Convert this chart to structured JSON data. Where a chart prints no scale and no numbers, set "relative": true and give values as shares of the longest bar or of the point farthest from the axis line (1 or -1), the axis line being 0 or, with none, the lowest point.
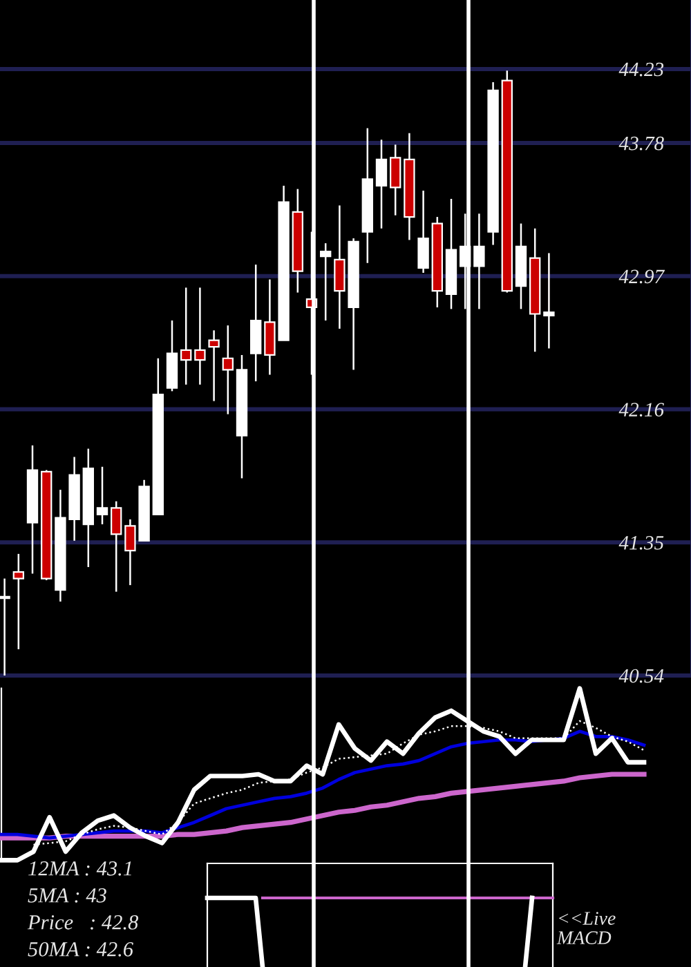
{
  "chart_data": [
    {
      "type": "candlestick",
      "categories": [
        null,
        null,
        null,
        null,
        null,
        null,
        null,
        null,
        null,
        null,
        null,
        null,
        null,
        null,
        null,
        null,
        null,
        null,
        null,
        null,
        null,
        null,
        null,
        null,
        null,
        null,
        null,
        null,
        null,
        null,
        null,
        null,
        null,
        null,
        null,
        null,
        null,
        null,
        null,
        null
      ],
      "ohlc": [
        [
          41.02,
          41.13,
          40.54,
          41.01
        ],
        [
          41.17,
          41.28,
          40.7,
          41.13
        ],
        [
          41.47,
          41.94,
          41.16,
          41.79
        ],
        [
          41.78,
          41.79,
          41.12,
          41.13
        ],
        [
          41.06,
          41.67,
          40.99,
          41.5
        ],
        [
          41.49,
          41.87,
          41.36,
          41.76
        ],
        [
          41.46,
          41.92,
          41.2,
          41.8
        ],
        [
          41.52,
          41.81,
          41.46,
          41.56
        ],
        [
          41.56,
          41.6,
          41.05,
          41.4
        ],
        [
          41.45,
          41.49,
          41.09,
          41.3
        ],
        [
          41.36,
          41.73,
          41.36,
          41.69
        ],
        [
          41.52,
          42.47,
          41.52,
          42.25
        ],
        [
          42.29,
          42.7,
          42.27,
          42.5
        ],
        [
          42.52,
          42.9,
          42.31,
          42.46
        ],
        [
          42.52,
          42.9,
          42.31,
          42.46
        ],
        [
          42.58,
          42.64,
          42.21,
          42.54
        ],
        [
          42.47,
          42.67,
          42.13,
          42.4
        ],
        [
          42.0,
          42.49,
          41.74,
          42.4
        ],
        [
          42.5,
          43.04,
          42.33,
          42.7
        ],
        [
          42.69,
          42.95,
          42.37,
          42.49
        ],
        [
          42.58,
          43.52,
          42.58,
          43.42
        ],
        [
          43.36,
          43.5,
          42.87,
          43.0
        ],
        [
          42.83,
          43.24,
          42.37,
          42.78
        ],
        [
          43.09,
          43.17,
          42.7,
          43.12
        ],
        [
          43.07,
          43.4,
          42.65,
          42.88
        ],
        [
          42.78,
          43.2,
          42.4,
          43.18
        ],
        [
          43.24,
          43.87,
          43.05,
          43.56
        ],
        [
          43.52,
          43.8,
          43.26,
          43.68
        ],
        [
          43.69,
          43.77,
          43.34,
          43.51
        ],
        [
          43.68,
          43.84,
          43.19,
          43.33
        ],
        [
          43.02,
          43.49,
          42.99,
          43.2
        ],
        [
          43.29,
          43.33,
          42.78,
          42.88
        ],
        [
          42.86,
          43.44,
          42.77,
          43.13
        ],
        [
          43.03,
          43.35,
          42.77,
          43.15
        ],
        [
          43.03,
          43.35,
          42.77,
          43.15
        ],
        [
          43.24,
          44.15,
          43.16,
          44.1
        ],
        [
          44.16,
          44.22,
          42.87,
          42.88
        ],
        [
          42.91,
          43.29,
          42.77,
          43.15
        ],
        [
          43.08,
          43.26,
          42.51,
          42.74
        ],
        [
          42.73,
          43.11,
          42.53,
          42.75
        ]
      ],
      "colors": [
        "#cc0000",
        "#cc0000",
        "#ffffff",
        "#cc0000",
        "#ffffff",
        "#ffffff",
        "#ffffff",
        "#ffffff",
        "#cc0000",
        "#cc0000",
        "#ffffff",
        "#ffffff",
        "#ffffff",
        "#cc0000",
        "#cc0000",
        "#cc0000",
        "#cc0000",
        "#ffffff",
        "#ffffff",
        "#cc0000",
        "#ffffff",
        "#cc0000",
        "#cc0000",
        "#ffffff",
        "#cc0000",
        "#ffffff",
        "#ffffff",
        "#ffffff",
        "#cc0000",
        "#cc0000",
        "#ffffff",
        "#cc0000",
        "#ffffff",
        "#ffffff",
        "#ffffff",
        "#ffffff",
        "#cc0000",
        "#ffffff",
        "#cc0000",
        "#ffffff"
      ],
      "ylim": [
        40.54,
        44.65
      ],
      "yticks": [
        40.54,
        41.35,
        42.16,
        42.97,
        43.78,
        44.23
      ],
      "grid": "y",
      "tick_labels": "y"
    },
    {
      "type": "line",
      "relative": true,
      "categories": [
        null,
        null,
        null,
        null,
        null,
        null,
        null,
        null,
        null,
        null,
        null,
        null,
        null,
        null,
        null,
        null,
        null,
        null,
        null,
        null,
        null,
        null,
        null,
        null,
        null,
        null,
        null,
        null,
        null,
        null,
        null,
        null,
        null,
        null,
        null,
        null,
        null,
        null,
        null,
        null,
        null
      ],
      "series": [
        {
          "color": "#cc66cc",
          "values": [
            0.13,
            0.13,
            0.13,
            0.13,
            0.14,
            0.14,
            0.14,
            0.14,
            0.14,
            0.14,
            0.14,
            0.15,
            0.15,
            0.16,
            0.17,
            0.19,
            0.2,
            0.21,
            0.22,
            0.24,
            0.26,
            0.28,
            0.29,
            0.31,
            0.32,
            0.34,
            0.36,
            0.37,
            0.39,
            0.4,
            0.41,
            0.42,
            0.43,
            0.44,
            0.45,
            0.46,
            0.48,
            0.49,
            0.5,
            0.5,
            0.5
          ]
        },
        {
          "color": "#0000dd",
          "values": [
            0.15,
            0.15,
            0.14,
            0.13,
            0.14,
            0.15,
            0.16,
            0.17,
            0.17,
            0.17,
            0.16,
            0.19,
            0.22,
            0.26,
            0.3,
            0.32,
            0.34,
            0.36,
            0.37,
            0.39,
            0.42,
            0.47,
            0.51,
            0.53,
            0.55,
            0.56,
            0.58,
            0.62,
            0.66,
            0.68,
            0.69,
            0.7,
            0.7,
            0.69,
            0.7,
            0.71,
            0.75,
            0.72,
            0.72,
            0.7,
            0.67
          ]
        },
        {
          "color": "#ffffff",
          "line_style": "dotted",
          "values": [
            null,
            null,
            0.09,
            0.1,
            0.11,
            0.15,
            0.18,
            0.2,
            0.19,
            0.17,
            0.15,
            0.22,
            0.33,
            0.36,
            0.39,
            0.41,
            0.45,
            0.46,
            0.47,
            0.51,
            0.54,
            0.59,
            0.6,
            0.61,
            0.62,
            0.68,
            0.73,
            0.75,
            0.78,
            0.78,
            0.77,
            0.75,
            0.71,
            0.71,
            0.71,
            0.71,
            0.81,
            0.77,
            0.72,
            0.69,
            0.64
          ]
        },
        {
          "color": "#ffffff",
          "values": [
            0,
            0,
            0.05,
            0.25,
            0.05,
            0.16,
            0.23,
            0.26,
            0.19,
            0.14,
            0.1,
            0.22,
            0.41,
            0.49,
            0.49,
            0.49,
            0.5,
            0.46,
            0.46,
            0.55,
            0.5,
            0.79,
            0.65,
            0.58,
            0.69,
            0.62,
            0.74,
            0.83,
            0.87,
            0.81,
            0.75,
            0.72,
            0.62,
            0.7,
            0.7,
            0.7,
            1,
            0.62,
            0.71,
            0.57,
            0.57
          ]
        }
      ],
      "annotations": [
        "12MA : 43.1",
        "5MA : 43",
        "Price   : 42.8",
        "50MA : 42.6"
      ]
    },
    {
      "type": "line",
      "relative": true,
      "categories": [
        null,
        null,
        null,
        null,
        null,
        null,
        null,
        null,
        null,
        null,
        null,
        null,
        null,
        null,
        null,
        null,
        null,
        null,
        null,
        null,
        null,
        null,
        null,
        null,
        null,
        null,
        null,
        null,
        null,
        null,
        null,
        null,
        null,
        null,
        null,
        null,
        null,
        null,
        null,
        null,
        null,
        null,
        null,
        null,
        null,
        null,
        null,
        null,
        null,
        null,
        null
      ],
      "series": [
        {
          "color": "#cc66cc",
          "values": [
            null,
            null,
            null,
            null,
            null,
            null,
            null,
            null,
            1,
            1,
            1,
            1,
            1,
            1,
            1,
            1,
            1,
            1,
            1,
            1,
            1,
            1,
            1,
            1,
            1,
            1,
            1,
            1,
            1,
            1,
            1,
            1,
            1,
            1,
            1,
            1,
            1,
            1,
            1,
            1,
            1,
            1,
            1,
            1,
            1,
            1,
            1,
            1,
            1,
            1,
            1
          ]
        },
        {
          "color": "#ffffff",
          "values": [
            1,
            1,
            1,
            1,
            1,
            1,
            1,
            1,
            0,
            null,
            null,
            null,
            null,
            null,
            null,
            null,
            null,
            null,
            null,
            null,
            null,
            null,
            null,
            null,
            null,
            null,
            null,
            null,
            null,
            null,
            null,
            null,
            null,
            null,
            null,
            null,
            null,
            null,
            null,
            null,
            null,
            null,
            null,
            null,
            null,
            null,
            0,
            1,
            null,
            null,
            null
          ]
        }
      ],
      "annotations": [
        "<<Live\nMACD"
      ]
    }
  ]
}
